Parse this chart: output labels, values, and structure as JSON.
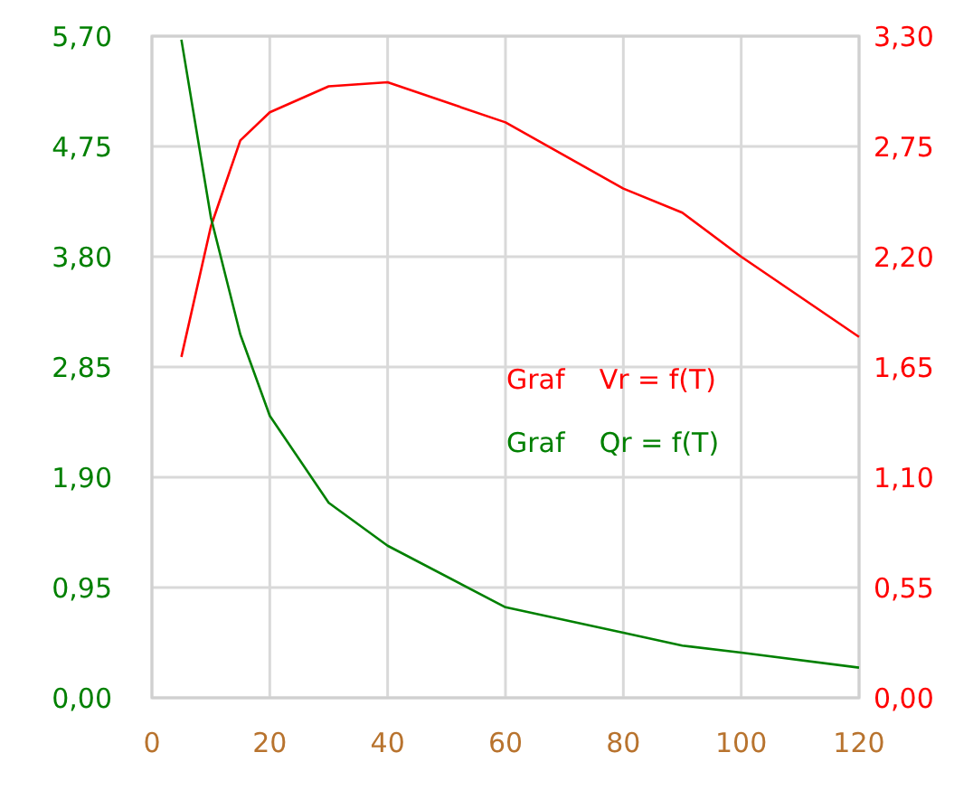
{
  "chart_data": {
    "type": "line",
    "x": [
      5,
      10,
      15,
      20,
      30,
      40,
      60,
      80,
      90,
      100,
      120
    ],
    "xlim": [
      0,
      120
    ],
    "xticks": [
      0,
      20,
      40,
      60,
      80,
      100,
      120
    ],
    "ylim": [
      0,
      5.7
    ],
    "yticks": [
      {
        "value": 0,
        "label": "0,00"
      },
      {
        "value": 0.95,
        "label": "0,95"
      },
      {
        "value": 1.9,
        "label": "1,90"
      },
      {
        "value": 2.85,
        "label": "2,85"
      },
      {
        "value": 3.8,
        "label": "3,80"
      },
      {
        "value": 4.75,
        "label": "4,75"
      },
      {
        "value": 5.7,
        "label": "5,70"
      }
    ],
    "y2lim": [
      0,
      3.3
    ],
    "y2ticks": [
      {
        "value": 0,
        "label": "0,00"
      },
      {
        "value": 0.55,
        "label": "0,55"
      },
      {
        "value": 1.1,
        "label": "1,10"
      },
      {
        "value": 1.65,
        "label": "1,65"
      },
      {
        "value": 2.2,
        "label": "2,20"
      },
      {
        "value": 2.75,
        "label": "2,75"
      },
      {
        "value": 3.3,
        "label": "3,30"
      }
    ],
    "grid": true,
    "legend": "right",
    "marker": "none",
    "series": [
      {
        "name": "Graf    Vr = f(T)",
        "color": "#ff0000",
        "axis": "y2",
        "values": [
          1.7,
          2.35,
          2.78,
          2.92,
          3.05,
          3.07,
          2.87,
          2.54,
          2.42,
          2.2,
          1.8
        ]
      },
      {
        "name": "Graf    Qr = f(T)",
        "color": "#008000",
        "values": [
          5.67,
          4.14,
          3.13,
          2.43,
          1.68,
          1.31,
          0.78,
          0.56,
          0.45,
          0.39,
          0.26
        ]
      }
    ]
  }
}
